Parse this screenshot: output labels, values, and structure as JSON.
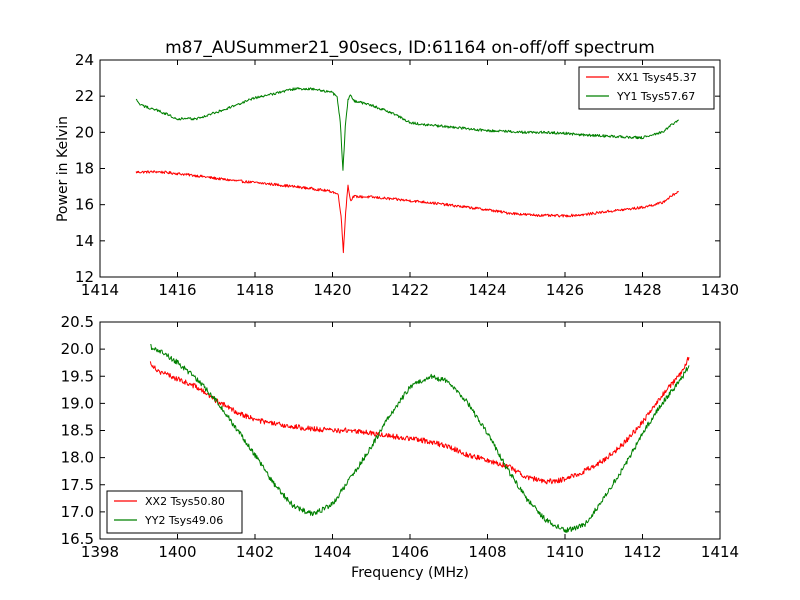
{
  "figure": {
    "title": "m87_AUSummer21_90secs, ID:61164 on-off/off spectrum"
  },
  "chart_data": [
    {
      "type": "line",
      "title": "m87_AUSummer21_90secs, ID:61164 on-off/off spectrum",
      "xlabel": "",
      "ylabel": "Power in Kelvin",
      "xlim": [
        1414,
        1430
      ],
      "ylim": [
        12,
        24
      ],
      "xticks": [
        1414,
        1416,
        1418,
        1420,
        1422,
        1424,
        1426,
        1428,
        1430
      ],
      "yticks": [
        12,
        14,
        16,
        18,
        20,
        22,
        24
      ],
      "grid": false,
      "legend_position": "top-right",
      "series": [
        {
          "name": "XX1 Tsys45.37",
          "color": "#ff0000",
          "points": [
            [
              1414.93,
              17.8
            ],
            [
              1415.5,
              17.82
            ],
            [
              1416,
              17.72
            ],
            [
              1416.5,
              17.6
            ],
            [
              1417,
              17.45
            ],
            [
              1417.5,
              17.32
            ],
            [
              1418,
              17.22
            ],
            [
              1418.5,
              17.12
            ],
            [
              1419,
              17.0
            ],
            [
              1419.5,
              16.88
            ],
            [
              1420,
              16.72
            ],
            [
              1420.15,
              16.55
            ],
            [
              1420.22,
              15.4
            ],
            [
              1420.28,
              13.4
            ],
            [
              1420.34,
              15.6
            ],
            [
              1420.4,
              17.1
            ],
            [
              1420.46,
              16.25
            ],
            [
              1420.55,
              16.45
            ],
            [
              1421,
              16.42
            ],
            [
              1421.5,
              16.32
            ],
            [
              1422,
              16.22
            ],
            [
              1422.5,
              16.12
            ],
            [
              1423,
              15.98
            ],
            [
              1423.5,
              15.85
            ],
            [
              1424,
              15.72
            ],
            [
              1424.5,
              15.55
            ],
            [
              1425,
              15.45
            ],
            [
              1425.5,
              15.4
            ],
            [
              1426,
              15.38
            ],
            [
              1426.5,
              15.45
            ],
            [
              1427,
              15.6
            ],
            [
              1427.5,
              15.72
            ],
            [
              1428,
              15.85
            ],
            [
              1428.5,
              16.1
            ],
            [
              1428.93,
              16.75
            ]
          ]
        },
        {
          "name": "YY1 Tsys57.67",
          "color": "#008000",
          "points": [
            [
              1414.93,
              21.8
            ],
            [
              1415.05,
              21.5
            ],
            [
              1415.5,
              21.2
            ],
            [
              1416,
              20.75
            ],
            [
              1416.5,
              20.75
            ],
            [
              1417,
              21.1
            ],
            [
              1417.5,
              21.5
            ],
            [
              1418,
              21.9
            ],
            [
              1418.5,
              22.15
            ],
            [
              1419,
              22.4
            ],
            [
              1419.5,
              22.4
            ],
            [
              1420,
              22.2
            ],
            [
              1420.12,
              21.9
            ],
            [
              1420.2,
              20.6
            ],
            [
              1420.27,
              17.9
            ],
            [
              1420.33,
              20.3
            ],
            [
              1420.4,
              21.8
            ],
            [
              1420.46,
              22.1
            ],
            [
              1420.55,
              21.75
            ],
            [
              1421,
              21.5
            ],
            [
              1421.5,
              21.1
            ],
            [
              1422,
              20.55
            ],
            [
              1422.5,
              20.4
            ],
            [
              1423,
              20.3
            ],
            [
              1423.5,
              20.2
            ],
            [
              1424,
              20.1
            ],
            [
              1424.5,
              20.05
            ],
            [
              1425,
              20.0
            ],
            [
              1425.5,
              20.0
            ],
            [
              1426,
              19.95
            ],
            [
              1426.5,
              19.85
            ],
            [
              1427,
              19.8
            ],
            [
              1427.5,
              19.75
            ],
            [
              1428,
              19.7
            ],
            [
              1428.5,
              20.0
            ],
            [
              1428.93,
              20.7
            ]
          ]
        }
      ]
    },
    {
      "type": "line",
      "title": "",
      "xlabel": "Frequency (MHz)",
      "ylabel": "",
      "xlim": [
        1398,
        1414
      ],
      "ylim": [
        16.5,
        20.5
      ],
      "xticks": [
        1398,
        1400,
        1402,
        1404,
        1406,
        1408,
        1410,
        1412,
        1414
      ],
      "yticks": [
        16.5,
        17.0,
        17.5,
        18.0,
        18.5,
        19.0,
        19.5,
        20.0,
        20.5
      ],
      "grid": false,
      "legend_position": "bottom-left",
      "series": [
        {
          "name": "XX2 Tsys50.80",
          "color": "#ff0000",
          "points": [
            [
              1399.3,
              19.75
            ],
            [
              1399.5,
              19.6
            ],
            [
              1400,
              19.45
            ],
            [
              1400.5,
              19.3
            ],
            [
              1401,
              19.05
            ],
            [
              1401.5,
              18.85
            ],
            [
              1402,
              18.7
            ],
            [
              1402.5,
              18.62
            ],
            [
              1403,
              18.57
            ],
            [
              1403.5,
              18.53
            ],
            [
              1404,
              18.5
            ],
            [
              1404.5,
              18.5
            ],
            [
              1405,
              18.45
            ],
            [
              1405.5,
              18.4
            ],
            [
              1406,
              18.35
            ],
            [
              1406.5,
              18.3
            ],
            [
              1407,
              18.2
            ],
            [
              1407.5,
              18.05
            ],
            [
              1408,
              17.95
            ],
            [
              1408.5,
              17.85
            ],
            [
              1409,
              17.65
            ],
            [
              1409.5,
              17.55
            ],
            [
              1410,
              17.6
            ],
            [
              1410.5,
              17.75
            ],
            [
              1411,
              17.95
            ],
            [
              1411.5,
              18.25
            ],
            [
              1412,
              18.65
            ],
            [
              1412.5,
              19.15
            ],
            [
              1413,
              19.55
            ],
            [
              1413.2,
              19.85
            ]
          ]
        },
        {
          "name": "YY2 Tsys49.06",
          "color": "#008000",
          "points": [
            [
              1399.3,
              20.05
            ],
            [
              1399.6,
              19.95
            ],
            [
              1400,
              19.75
            ],
            [
              1400.5,
              19.45
            ],
            [
              1401,
              19.05
            ],
            [
              1401.5,
              18.55
            ],
            [
              1402,
              18.05
            ],
            [
              1402.5,
              17.5
            ],
            [
              1403,
              17.1
            ],
            [
              1403.5,
              16.95
            ],
            [
              1404,
              17.15
            ],
            [
              1404.5,
              17.65
            ],
            [
              1405,
              18.2
            ],
            [
              1405.5,
              18.8
            ],
            [
              1406,
              19.3
            ],
            [
              1406.5,
              19.5
            ],
            [
              1407,
              19.4
            ],
            [
              1407.5,
              19.0
            ],
            [
              1408,
              18.45
            ],
            [
              1408.5,
              17.8
            ],
            [
              1409,
              17.25
            ],
            [
              1409.5,
              16.85
            ],
            [
              1410,
              16.65
            ],
            [
              1410.5,
              16.75
            ],
            [
              1411,
              17.25
            ],
            [
              1411.5,
              17.8
            ],
            [
              1412,
              18.45
            ],
            [
              1412.5,
              19.0
            ],
            [
              1413,
              19.45
            ],
            [
              1413.2,
              19.7
            ]
          ]
        }
      ]
    }
  ]
}
